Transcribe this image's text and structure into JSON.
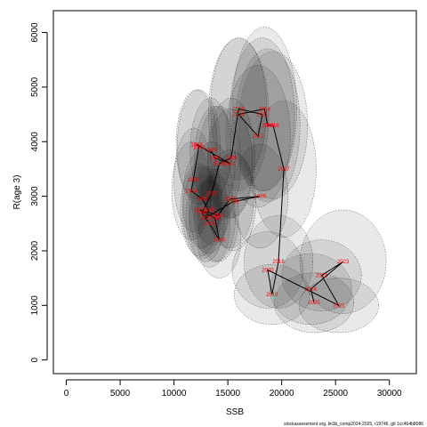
{
  "chart_data": {
    "type": "scatter",
    "xlabel": "SSB",
    "ylabel": "R(age 3)",
    "xlim": [
      -1200,
      32500
    ],
    "ylim": [
      -250,
      6400
    ],
    "xticks": [
      0,
      5000,
      10000,
      15000,
      20000,
      25000,
      30000
    ],
    "yticks": [
      0,
      1000,
      2000,
      3000,
      4000,
      5000,
      6000
    ],
    "grid": false,
    "legend": "none",
    "colors": {
      "line": "#000000",
      "labels": "#ff0000",
      "ellipse_fill": "#000000",
      "ellipse_stroke": "#555555"
    },
    "points": [
      {
        "year": "1988",
        "x": 12100,
        "y": 3950,
        "rx": 1900,
        "ry": 1000
      },
      {
        "year": "1989",
        "x": 13400,
        "y": 3850,
        "rx": 1900,
        "ry": 950
      },
      {
        "year": "1990",
        "x": 13800,
        "y": 3700,
        "rx": 1900,
        "ry": 950
      },
      {
        "year": "1991",
        "x": 15200,
        "y": 3600,
        "rx": 2100,
        "ry": 1000
      },
      {
        "year": "1992",
        "x": 12300,
        "y": 3900,
        "rx": 2000,
        "ry": 1050
      },
      {
        "year": "1993",
        "x": 11800,
        "y": 3300,
        "rx": 1800,
        "ry": 950
      },
      {
        "year": "1994",
        "x": 11600,
        "y": 3100,
        "rx": 1800,
        "ry": 900
      },
      {
        "year": "1995",
        "x": 12600,
        "y": 2950,
        "rx": 1800,
        "ry": 900
      },
      {
        "year": "1996",
        "x": 13200,
        "y": 2750,
        "rx": 1800,
        "ry": 800
      },
      {
        "year": "1997",
        "x": 12900,
        "y": 2600,
        "rx": 1800,
        "ry": 800
      },
      {
        "year": "1998",
        "x": 15500,
        "y": 2900,
        "rx": 2100,
        "ry": 900
      },
      {
        "year": "1999",
        "x": 18000,
        "y": 3000,
        "rx": 2600,
        "ry": 950
      },
      {
        "year": "2000",
        "x": 15200,
        "y": 2950,
        "rx": 2200,
        "ry": 900
      },
      {
        "year": "2001",
        "x": 14100,
        "y": 2650,
        "rx": 1900,
        "ry": 850
      },
      {
        "year": "2002",
        "x": 12400,
        "y": 2750,
        "rx": 1800,
        "ry": 850
      },
      {
        "year": "2003",
        "x": 13800,
        "y": 2600,
        "rx": 1900,
        "ry": 800
      },
      {
        "year": "2004",
        "x": 14200,
        "y": 2200,
        "rx": 2000,
        "ry": 700
      },
      {
        "year": "2005",
        "x": 13300,
        "y": 2500,
        "rx": 1900,
        "ry": 800
      },
      {
        "year": "2006",
        "x": 12600,
        "y": 2700,
        "rx": 1800,
        "ry": 850
      },
      {
        "year": "2007",
        "x": 13500,
        "y": 3050,
        "rx": 1900,
        "ry": 950
      },
      {
        "year": "2008",
        "x": 14200,
        "y": 3600,
        "rx": 2000,
        "ry": 1050
      },
      {
        "year": "2009",
        "x": 15300,
        "y": 3700,
        "rx": 2200,
        "ry": 1100
      },
      {
        "year": "2010",
        "x": 16000,
        "y": 4600,
        "rx": 2600,
        "ry": 1300
      },
      {
        "year": "2011",
        "x": 18200,
        "y": 4500,
        "rx": 3000,
        "ry": 1400
      },
      {
        "year": "2012",
        "x": 17800,
        "y": 4100,
        "rx": 3000,
        "ry": 1300
      },
      {
        "year": "2013",
        "x": 16000,
        "y": 4500,
        "rx": 2800,
        "ry": 1400
      },
      {
        "year": "2014",
        "x": 18400,
        "y": 4600,
        "rx": 3000,
        "ry": 1500
      },
      {
        "year": "2015",
        "x": 18700,
        "y": 4300,
        "rx": 3000,
        "ry": 1400
      },
      {
        "year": "2016",
        "x": 19200,
        "y": 4300,
        "rx": 3200,
        "ry": 1350
      },
      {
        "year": "2017",
        "x": 20200,
        "y": 3500,
        "rx": 3000,
        "ry": 1250
      },
      {
        "year": "2018",
        "x": 19700,
        "y": 1800,
        "rx": 3200,
        "ry": 850
      },
      {
        "year": "2019",
        "x": 19100,
        "y": 1200,
        "rx": 3500,
        "ry": 550
      },
      {
        "year": "2020",
        "x": 18700,
        "y": 1650,
        "rx": 3300,
        "ry": 700
      },
      {
        "year": "2021",
        "x": 25300,
        "y": 1000,
        "rx": 3700,
        "ry": 500
      },
      {
        "year": "2022",
        "x": 23700,
        "y": 1550,
        "rx": 3700,
        "ry": 650
      },
      {
        "year": "2023",
        "x": 25700,
        "y": 1800,
        "rx": 4000,
        "ry": 950
      },
      {
        "year": "2024",
        "x": 22700,
        "y": 1300,
        "rx": 3800,
        "ry": 650
      },
      {
        "year": "2025",
        "x": 23000,
        "y": 1050,
        "rx": 3700,
        "ry": 550
      }
    ],
    "path": [
      "1989",
      "1990",
      "1991",
      "1988",
      "1992",
      "1993",
      "1994",
      "1995",
      "1996",
      "1997",
      "1998",
      "1999",
      "2000",
      "2001",
      "2002",
      "2003",
      "2004",
      "2005",
      "2006",
      "2007",
      "2008",
      "2009",
      "2010",
      "2011",
      "2012",
      "2013",
      "2014",
      "2015",
      "2016",
      "2017",
      "2018",
      "2019",
      "2020",
      "2021",
      "2022",
      "2023",
      "2024",
      "2025"
    ]
  },
  "credit": "stockassessment.org, lin3b_comp2024-2025, r19746, git 1cc464b8086"
}
